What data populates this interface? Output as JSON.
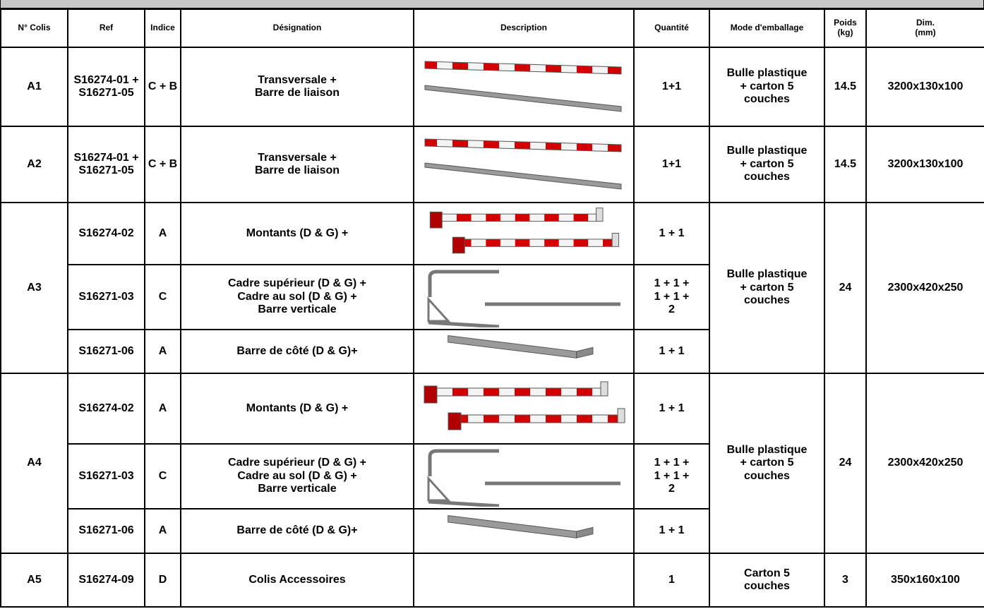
{
  "table": {
    "columns": [
      "N° Colis",
      "Ref",
      "Indice",
      "Désignation",
      "Description",
      "Quantité",
      "Mode d'emballage",
      "Poids\n(kg)",
      "Dim.\n(mm)"
    ],
    "packages": [
      {
        "colis": "A1",
        "items": [
          {
            "ref": "S16274-01 +\nS16271-05",
            "indice": "C + B",
            "designation": "Transversale +\nBarre de liaison",
            "quantite": "1+1"
          }
        ],
        "emballage": "Bulle plastique\n+ carton 5\ncouches",
        "poids": "14.5",
        "dim": "3200x130x100"
      },
      {
        "colis": "A2",
        "items": [
          {
            "ref": "S16274-01 +\nS16271-05",
            "indice": "C + B",
            "designation": "Transversale +\nBarre de liaison",
            "quantite": "1+1"
          }
        ],
        "emballage": "Bulle plastique\n+ carton 5\ncouches",
        "poids": "14.5",
        "dim": "3200x130x100"
      },
      {
        "colis": "A3",
        "items": [
          {
            "ref": "S16274-02",
            "indice": "A",
            "designation": "Montants (D & G) +",
            "quantite": "1 + 1"
          },
          {
            "ref": "S16271-03",
            "indice": "C",
            "designation": "Cadre supérieur (D & G) +\nCadre au sol (D & G) +\nBarre verticale",
            "quantite": "1 + 1 +\n1 + 1 +\n2"
          },
          {
            "ref": "S16271-06",
            "indice": "A",
            "designation": "Barre de côté (D & G)+",
            "quantite": "1 + 1"
          }
        ],
        "emballage": "Bulle plastique\n+ carton 5\ncouches",
        "poids": "24",
        "dim": "2300x420x250"
      },
      {
        "colis": "A4",
        "items": [
          {
            "ref": "S16274-02",
            "indice": "A",
            "designation": "Montants (D & G) +",
            "quantite": "1 + 1"
          },
          {
            "ref": "S16271-03",
            "indice": "C",
            "designation": "Cadre supérieur (D & G) +\nCadre au sol (D & G) +\nBarre verticale",
            "quantite": "1 + 1 +\n1 + 1 +\n2"
          },
          {
            "ref": "S16271-06",
            "indice": "A",
            "designation": "Barre de côté (D & G)+",
            "quantite": "1 + 1"
          }
        ],
        "emballage": "Bulle plastique\n+ carton 5\ncouches",
        "poids": "24",
        "dim": "2300x420x250"
      },
      {
        "colis": "A5",
        "items": [
          {
            "ref": "S16274-09",
            "indice": "D",
            "designation": "Colis Accessoires",
            "quantite": "1"
          }
        ],
        "emballage": "Carton 5\ncouches",
        "poids": "3",
        "dim": "350x160x100"
      }
    ]
  }
}
